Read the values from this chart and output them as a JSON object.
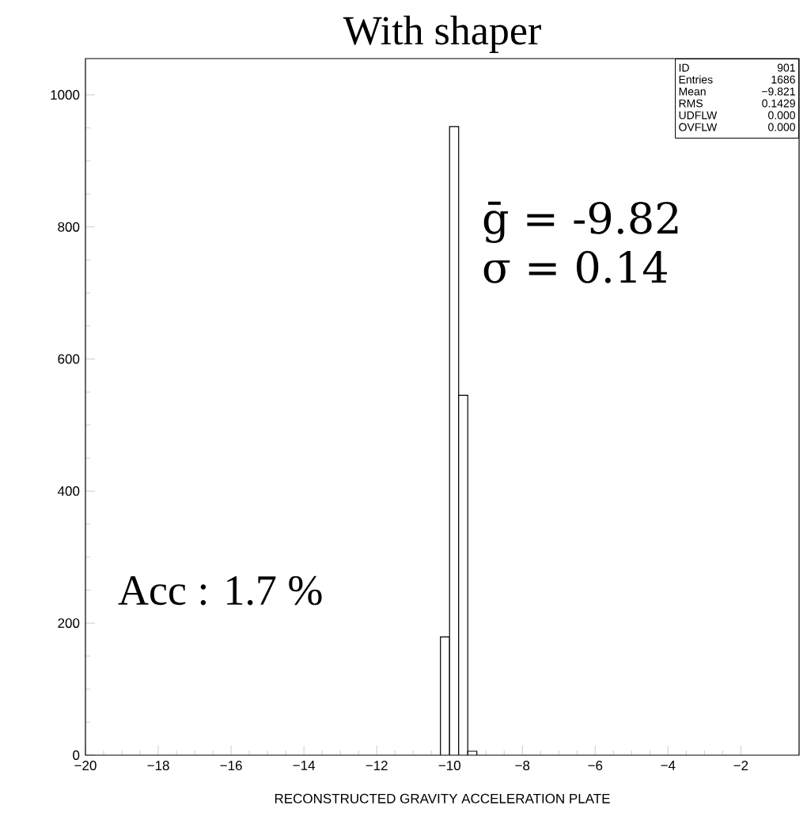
{
  "chart_data": {
    "type": "histogram",
    "title": "With shaper",
    "xlabel": "RECONSTRUCTED GRAVITY ACCELERATION PLATE",
    "bins": [
      -10.25,
      -10,
      -9.75,
      -9.5,
      -9.25
    ],
    "values": [
      179,
      952,
      545,
      6
    ],
    "color": "#000000",
    "xlim": [
      -20,
      -0.4
    ],
    "ylim": [
      0,
      1055
    ],
    "xticks": [
      {
        "value": -20,
        "label": "−20"
      },
      {
        "value": -18,
        "label": "−18"
      },
      {
        "value": -16,
        "label": "−16"
      },
      {
        "value": -14,
        "label": "−14"
      },
      {
        "value": -12,
        "label": "−12"
      },
      {
        "value": -10,
        "label": "−10"
      },
      {
        "value": -8,
        "label": "−8"
      },
      {
        "value": -6,
        "label": "−6"
      },
      {
        "value": -4,
        "label": "−4"
      },
      {
        "value": -2,
        "label": "−2"
      }
    ],
    "yticks": [
      0,
      200,
      400,
      600,
      800,
      1000
    ],
    "grid": false,
    "annotations": [
      "ID",
      "901",
      "Entries",
      "1686",
      "Mean",
      "−9.821",
      "RMS",
      "0.1429",
      "UDFLW",
      "0.000",
      "OVFLW",
      "0.000",
      "ḡ = -9.82",
      "σ = 0.14",
      "Acc : 1.7 %"
    ]
  }
}
